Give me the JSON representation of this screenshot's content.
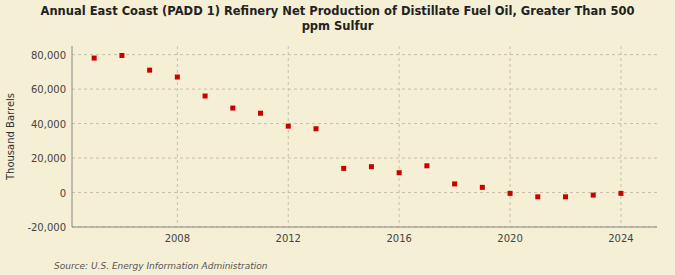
{
  "chart_data": {
    "type": "scatter",
    "title": "Annual East Coast (PADD 1) Refinery Net Production of Distillate Fuel Oil, Greater Than 500\nppm Sulfur",
    "y_label": "Thousand Barrels",
    "source": "Source: U.S. Energy Information Administration",
    "x": [
      2005,
      2006,
      2007,
      2008,
      2009,
      2010,
      2011,
      2012,
      2013,
      2014,
      2015,
      2016,
      2017,
      2018,
      2019,
      2020,
      2021,
      2022,
      2023,
      2024
    ],
    "values": [
      78000,
      79500,
      71000,
      67000,
      56000,
      49000,
      46000,
      38500,
      37000,
      14000,
      15000,
      11500,
      15500,
      5000,
      3000,
      -500,
      -2500,
      -2500,
      -1500,
      -500
    ],
    "color": "#cc0000",
    "marker": "square",
    "xlim": [
      2004.2,
      2025.3
    ],
    "xticks": [
      2008,
      2012,
      2016,
      2020,
      2024
    ],
    "ylim": [
      -20000,
      85000
    ],
    "yticks": [
      {
        "value": -20000,
        "label": "-20,000"
      },
      0,
      {
        "value": 20000,
        "label": "20,000"
      },
      {
        "value": 40000,
        "label": "40,000"
      },
      {
        "value": 60000,
        "label": "60,000"
      },
      {
        "value": 80000,
        "label": "80,000"
      }
    ],
    "grid": true
  }
}
